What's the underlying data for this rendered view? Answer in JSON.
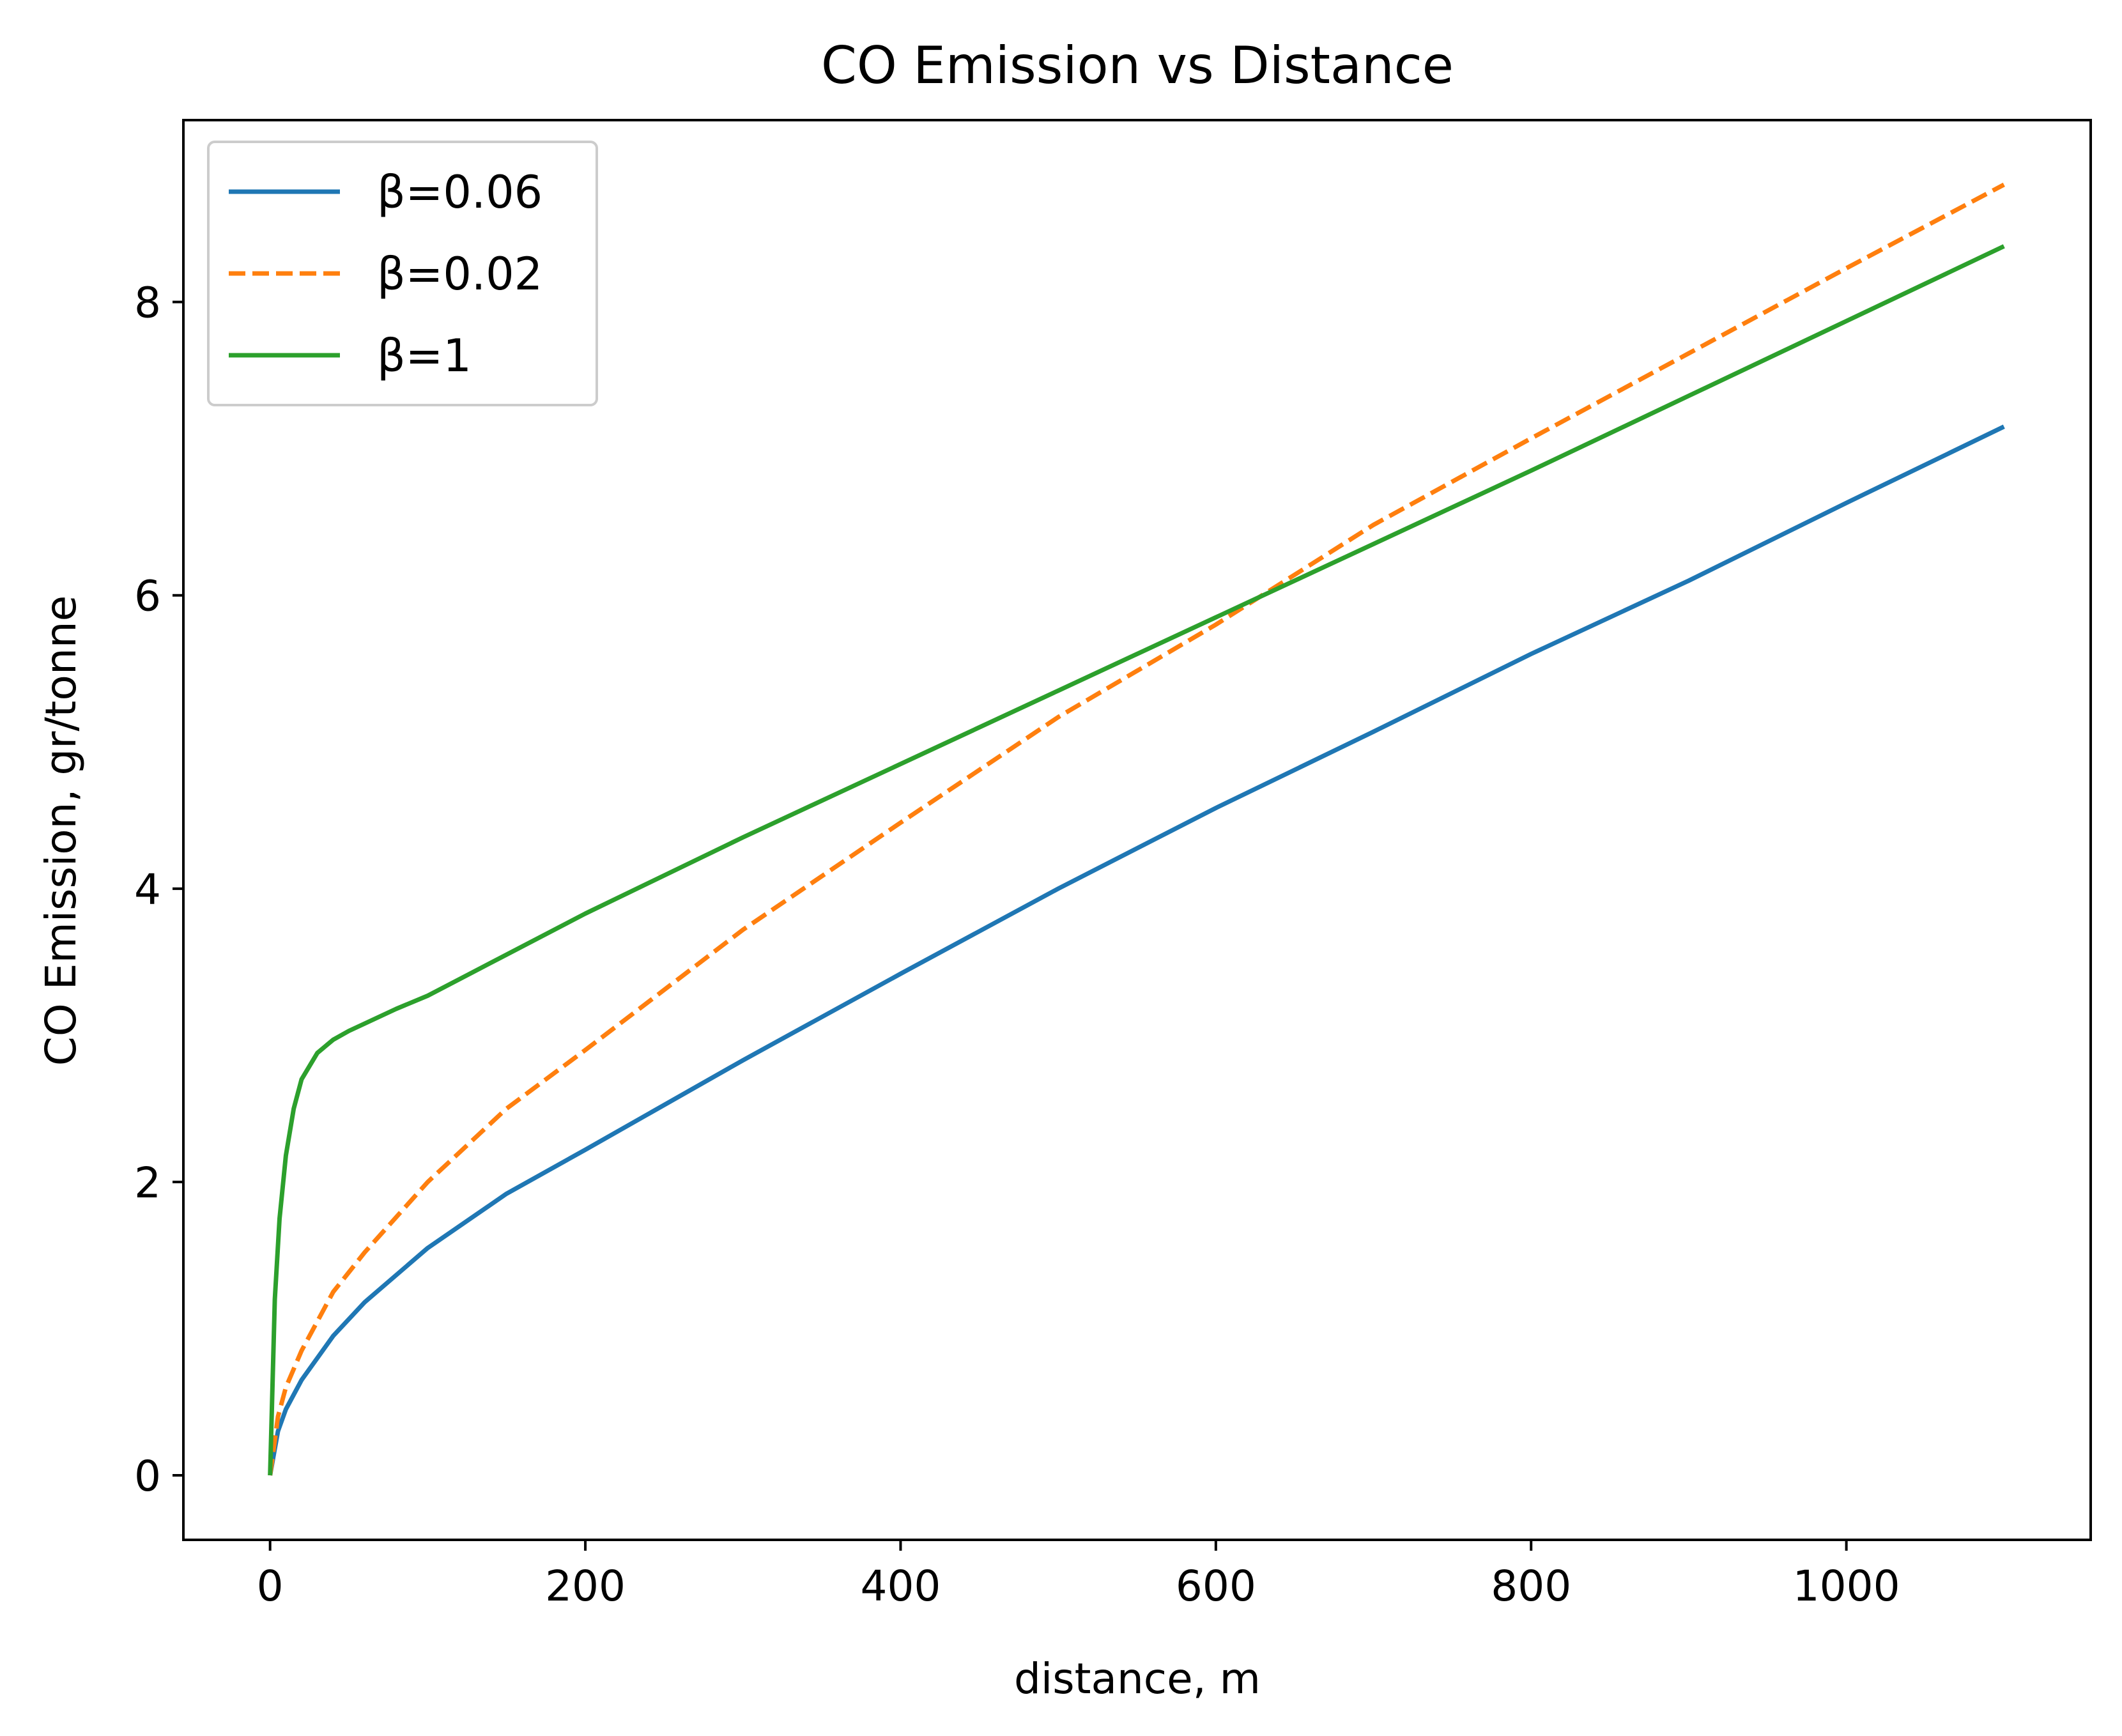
{
  "chart_data": {
    "type": "line",
    "title": "CO Emission vs  Distance",
    "xlabel": "distance, m",
    "ylabel": "CO Emission, gr/tonne",
    "xlim": [
      -55,
      1155
    ],
    "ylim": [
      -0.44,
      9.24
    ],
    "xticks": [
      0,
      200,
      400,
      600,
      800,
      1000
    ],
    "yticks": [
      0,
      2,
      4,
      6,
      8
    ],
    "grid": false,
    "legend_position": "top-left",
    "series": [
      {
        "name": "β=0.06",
        "color": "#1f77b4",
        "style": "solid",
        "x": [
          0,
          5,
          10,
          20,
          40,
          60,
          100,
          150,
          200,
          300,
          400,
          500,
          600,
          700,
          800,
          900,
          1000,
          1100
        ],
        "y": [
          0,
          0.3,
          0.45,
          0.65,
          0.95,
          1.18,
          1.55,
          1.92,
          2.22,
          2.83,
          3.42,
          4.0,
          4.55,
          5.07,
          5.6,
          6.1,
          6.63,
          7.15
        ]
      },
      {
        "name": "β=0.02",
        "color": "#ff7f0e",
        "style": "dashed",
        "x": [
          0,
          5,
          10,
          20,
          40,
          60,
          100,
          150,
          200,
          300,
          400,
          500,
          600,
          700,
          800,
          900,
          1000,
          1100
        ],
        "y": [
          0,
          0.4,
          0.6,
          0.85,
          1.25,
          1.52,
          2.0,
          2.5,
          2.9,
          3.72,
          4.45,
          5.17,
          5.8,
          6.48,
          7.07,
          7.65,
          8.23,
          8.8
        ]
      },
      {
        "name": "β=1",
        "color": "#2ca02c",
        "style": "solid",
        "x": [
          0,
          3,
          6,
          10,
          15,
          20,
          30,
          40,
          50,
          60,
          80,
          100,
          150,
          200,
          300,
          400,
          500,
          600,
          700,
          800,
          900,
          1000,
          1100
        ],
        "y": [
          0,
          1.2,
          1.75,
          2.18,
          2.5,
          2.7,
          2.88,
          2.97,
          3.03,
          3.08,
          3.18,
          3.27,
          3.55,
          3.83,
          4.35,
          4.85,
          5.35,
          5.85,
          6.35,
          6.85,
          7.36,
          7.87,
          8.38
        ]
      }
    ]
  }
}
